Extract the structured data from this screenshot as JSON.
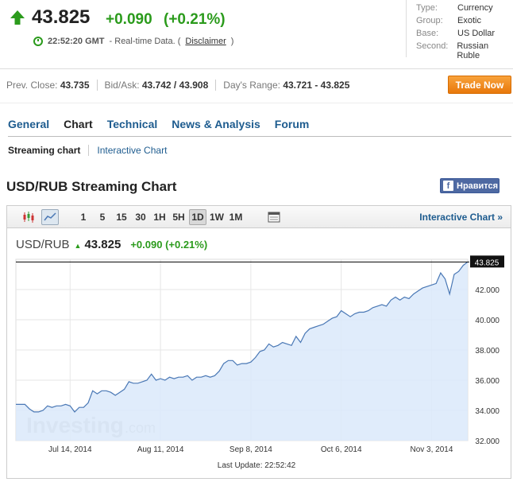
{
  "quote": {
    "price": "43.825",
    "change": "+0.090",
    "change_pct": "(+0.21%)",
    "time": "22:52:20 GMT",
    "data_type": "- Real-time Data. (",
    "disclaimer": "Disclaimer",
    "close_paren": ")",
    "color_up": "#2b9b1c"
  },
  "info": [
    {
      "key": "Type:",
      "value": "Currency"
    },
    {
      "key": "Group:",
      "value": "Exotic"
    },
    {
      "key": "Base:",
      "value": "US Dollar"
    },
    {
      "key": "Second:",
      "value": "Russian Ruble"
    }
  ],
  "stats": {
    "prev_close_label": "Prev. Close:",
    "prev_close": "43.735",
    "bidask_label": "Bid/Ask:",
    "bidask": "43.742 / 43.908",
    "range_label": "Day's Range:",
    "range": "43.721 - 43.825"
  },
  "trade_button": "Trade Now",
  "tabs": [
    "General",
    "Chart",
    "Technical",
    "News & Analysis",
    "Forum"
  ],
  "subtabs": {
    "current": "Streaming chart",
    "link": "Interactive Chart"
  },
  "section_title": "USD/RUB Streaming Chart",
  "fb_button": "Нравится",
  "fb_icon": "f",
  "toolbar": {
    "intervals": [
      "1",
      "5",
      "15",
      "30",
      "1H",
      "5H",
      "1D",
      "1W",
      "1M"
    ],
    "selected": "1D",
    "interactive_link": "Interactive Chart »"
  },
  "chart_header": {
    "symbol": "USD/RUB",
    "price": "43.825",
    "change": "+0.090 (+0.21%)"
  },
  "watermark": {
    "main": "Investing",
    "suffix": ".com"
  },
  "last_update": "Last Update: 22:52:42",
  "chart_data": {
    "type": "area",
    "title": "",
    "xlabel": "",
    "ylabel": "",
    "ylim": [
      32.0,
      44.0
    ],
    "y_ticks": [
      "32.000",
      "34.000",
      "36.000",
      "38.000",
      "40.000",
      "42.000"
    ],
    "y_tick_values": [
      32,
      34,
      36,
      38,
      40,
      42
    ],
    "x_ticks": [
      "Jul 14, 2014",
      "Aug 11, 2014",
      "Sep 8, 2014",
      "Oct 6, 2014",
      "Nov 3, 2014"
    ],
    "x_tick_index": [
      12,
      32,
      52,
      72,
      92
    ],
    "last_label": "43.825",
    "reference_line": 43.825,
    "grid": true,
    "series_color": "#4a78b5",
    "fill_color": "#dbe9fa",
    "values": [
      34.4,
      34.4,
      34.4,
      34.1,
      33.9,
      33.9,
      34.0,
      34.3,
      34.2,
      34.3,
      34.3,
      34.4,
      34.3,
      33.9,
      34.2,
      34.2,
      34.5,
      35.3,
      35.1,
      35.3,
      35.3,
      35.2,
      35.0,
      35.2,
      35.4,
      35.9,
      35.8,
      35.8,
      35.9,
      36.0,
      36.4,
      36.0,
      36.1,
      36.0,
      36.2,
      36.1,
      36.2,
      36.2,
      36.3,
      36.0,
      36.2,
      36.2,
      36.3,
      36.2,
      36.3,
      36.6,
      37.1,
      37.3,
      37.3,
      37.0,
      37.1,
      37.1,
      37.2,
      37.5,
      37.9,
      38.0,
      38.4,
      38.2,
      38.3,
      38.5,
      38.4,
      38.3,
      38.9,
      38.5,
      39.1,
      39.4,
      39.5,
      39.6,
      39.7,
      39.9,
      40.1,
      40.2,
      40.6,
      40.4,
      40.2,
      40.4,
      40.5,
      40.5,
      40.6,
      40.8,
      40.9,
      41.0,
      40.9,
      41.3,
      41.5,
      41.3,
      41.5,
      41.4,
      41.7,
      41.9,
      42.1,
      42.2,
      42.3,
      42.4,
      43.1,
      42.7,
      41.7,
      43.0,
      43.2,
      43.6,
      43.825
    ]
  }
}
